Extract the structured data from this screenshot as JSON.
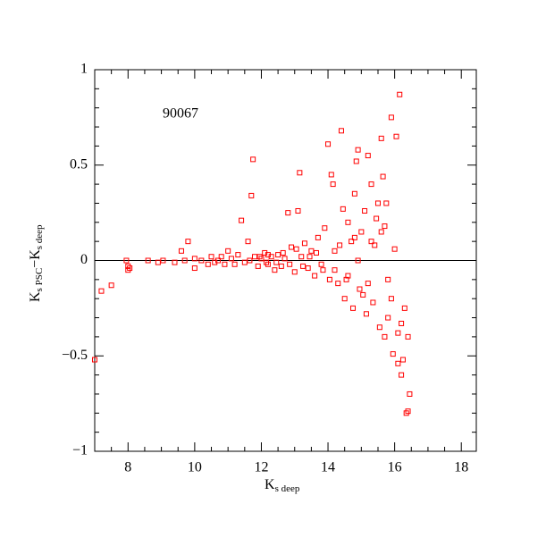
{
  "chart_data": {
    "type": "scatter",
    "annotation": "90067",
    "xlabel": {
      "main": "K",
      "sub": "s deep"
    },
    "ylabel": {
      "main1": "K",
      "sub1": "s PSC",
      "main2": "−K",
      "sub2": "s deep"
    },
    "color": "#ff0000",
    "xlim": [
      7,
      18.45
    ],
    "ylim": [
      -1,
      1
    ],
    "xticks": [
      8,
      10,
      12,
      14,
      16,
      18
    ],
    "yticks": [
      {
        "value": -1,
        "label": "−1"
      },
      {
        "value": -0.5,
        "label": "−0.5"
      },
      0,
      0.5,
      1
    ],
    "xminor": [
      7.5,
      8.5,
      9,
      9.5,
      10.5,
      11,
      11.5,
      12.5,
      13,
      13.5,
      14.5,
      15,
      15.5,
      16.5,
      17,
      17.5,
      18.5
    ],
    "yminor": [
      -0.9,
      -0.8,
      -0.7,
      -0.6,
      -0.4,
      -0.3,
      -0.2,
      -0.1,
      0.1,
      0.2,
      0.3,
      0.4,
      0.6,
      0.7,
      0.8,
      0.9
    ],
    "hline": 0,
    "x": [
      7.0,
      7.2,
      7.5,
      7.95,
      8.0,
      8.0,
      8.05,
      8.6,
      8.9,
      9.05,
      9.4,
      9.6,
      9.7,
      9.8,
      10.0,
      10.0,
      10.2,
      10.4,
      10.5,
      10.6,
      10.7,
      10.8,
      10.9,
      11.0,
      11.1,
      11.2,
      11.3,
      11.4,
      11.5,
      11.6,
      11.7,
      11.75,
      11.8,
      11.9,
      12.0,
      12.1,
      12.2,
      12.3,
      12.4,
      12.5,
      12.6,
      12.7,
      12.8,
      12.9,
      13.0,
      13.1,
      13.15,
      13.2,
      13.3,
      13.4,
      13.5,
      13.6,
      13.7,
      13.8,
      13.9,
      14.0,
      14.05,
      14.1,
      14.15,
      14.2,
      14.3,
      14.4,
      14.45,
      14.5,
      14.6,
      14.7,
      14.75,
      14.8,
      14.85,
      14.9,
      14.95,
      15.0,
      15.1,
      15.15,
      15.2,
      15.3,
      15.35,
      15.4,
      15.5,
      15.55,
      15.6,
      15.65,
      15.7,
      15.75,
      15.8,
      15.9,
      15.95,
      16.0,
      16.05,
      16.1,
      16.15,
      16.2,
      16.25,
      16.3,
      16.35,
      16.4,
      16.45,
      16.4,
      14.2,
      14.6,
      15.2,
      15.8,
      15.3,
      14.9,
      16.1,
      15.6,
      12.2,
      12.45,
      12.65,
      12.85,
      13.05,
      13.25,
      13.45,
      13.65,
      13.85,
      11.65,
      11.95,
      12.15,
      14.35,
      14.55,
      14.8,
      15.05,
      15.45,
      15.9,
      16.2,
      15.7
    ],
    "y": [
      -0.52,
      -0.16,
      -0.13,
      0,
      -0.03,
      -0.05,
      -0.04,
      0,
      -0.01,
      0,
      -0.01,
      0.05,
      0,
      0.1,
      -0.04,
      0.01,
      0,
      -0.02,
      0.02,
      -0.01,
      0,
      0.02,
      -0.02,
      0.05,
      0.01,
      -0.02,
      0.03,
      0.21,
      -0.01,
      0.1,
      0.34,
      0.53,
      0.02,
      -0.03,
      0.01,
      0.04,
      -0.02,
      0.02,
      -0.05,
      0.03,
      -0.03,
      0.01,
      0.25,
      0.07,
      -0.06,
      0.26,
      0.46,
      0.02,
      0.09,
      -0.04,
      0.05,
      -0.08,
      0.12,
      -0.02,
      0.17,
      0.61,
      -0.1,
      0.45,
      0.4,
      0.05,
      -0.12,
      0.68,
      0.27,
      -0.2,
      0.2,
      0.1,
      -0.25,
      0.35,
      0.52,
      0.58,
      -0.15,
      0.15,
      0.26,
      -0.28,
      0.55,
      0.4,
      -0.22,
      0.08,
      0.3,
      -0.35,
      0.64,
      0.44,
      -0.4,
      0.3,
      -0.1,
      0.75,
      -0.49,
      0.06,
      0.65,
      -0.54,
      0.87,
      -0.6,
      -0.52,
      -0.25,
      -0.8,
      -0.79,
      -0.7,
      -0.4,
      -0.05,
      -0.08,
      -0.12,
      -0.3,
      0.1,
      0,
      -0.38,
      0.15,
      0.03,
      -0.01,
      0.04,
      -0.02,
      0.06,
      -0.03,
      0.02,
      0.04,
      -0.05,
      0.0,
      0.02,
      -0.01,
      0.08,
      -0.1,
      0.12,
      -0.18,
      0.22,
      -0.2,
      -0.33,
      0.18
    ]
  }
}
